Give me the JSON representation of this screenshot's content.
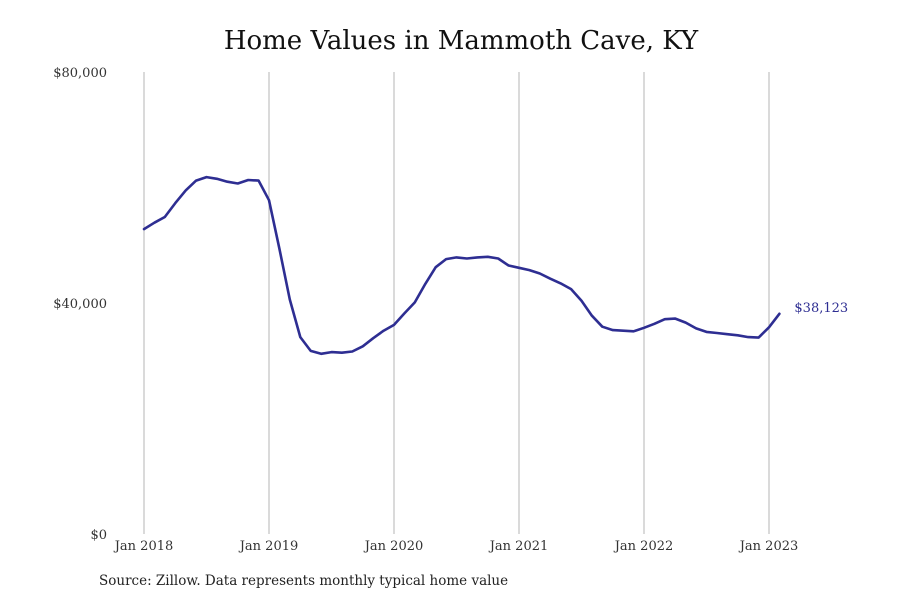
{
  "chart_data": {
    "type": "line",
    "title": "Home Values in Mammoth Cave, KY",
    "xlabel": "",
    "ylabel": "",
    "x_tick_labels": [
      "Jan 2018",
      "Jan 2019",
      "Jan 2020",
      "Jan 2021",
      "Jan 2022",
      "Jan 2023"
    ],
    "y_tick_labels": [
      "$0",
      "$40,000",
      "$80,000"
    ],
    "y_ticks": [
      0,
      40000,
      80000
    ],
    "ylim": [
      0,
      80000
    ],
    "xlim": [
      "2018-01",
      "2023-01"
    ],
    "grid": "vertical",
    "line_color": "#2e2e92",
    "end_label": "$38,123",
    "series": [
      {
        "x": [
          "2018-01",
          "2018-02",
          "2018-03",
          "2018-04",
          "2018-05",
          "2018-06",
          "2018-07",
          "2018-08",
          "2018-09",
          "2018-10",
          "2018-11",
          "2018-12",
          "2019-01",
          "2019-02",
          "2019-03",
          "2019-04",
          "2019-05",
          "2019-06",
          "2019-07",
          "2019-08",
          "2019-09",
          "2019-10",
          "2019-11",
          "2019-12",
          "2020-01",
          "2020-02",
          "2020-03",
          "2020-04",
          "2020-05",
          "2020-06",
          "2020-07",
          "2020-08",
          "2020-09",
          "2020-10",
          "2020-11",
          "2020-12",
          "2021-01",
          "2021-02",
          "2021-03",
          "2021-04",
          "2021-05",
          "2021-06",
          "2021-07",
          "2021-08",
          "2021-09",
          "2021-10",
          "2021-11",
          "2021-12",
          "2022-01",
          "2022-02",
          "2022-03",
          "2022-04",
          "2022-05",
          "2022-06",
          "2022-07",
          "2022-08",
          "2022-09",
          "2022-10",
          "2022-11",
          "2022-12",
          "2023-01",
          "2023-02"
        ],
        "values": [
          52800,
          53900,
          54900,
          57300,
          59500,
          61200,
          61800,
          61500,
          61000,
          60700,
          61300,
          61200,
          57800,
          49400,
          40600,
          34100,
          31700,
          31200,
          31500,
          31400,
          31600,
          32500,
          33900,
          35200,
          36200,
          38200,
          40100,
          43300,
          46200,
          47600,
          47900,
          47700,
          47900,
          48000,
          47700,
          46500,
          46100,
          45700,
          45100,
          44200,
          43400,
          42400,
          40400,
          37800,
          35900,
          35300,
          35200,
          35100,
          35700,
          36400,
          37200,
          37300,
          36600,
          35600,
          35000,
          34800,
          34600,
          34400,
          34100,
          34000,
          35800,
          38123
        ]
      }
    ]
  },
  "footer": {
    "source": "Source: Zillow. Data represents monthly typical home value"
  }
}
